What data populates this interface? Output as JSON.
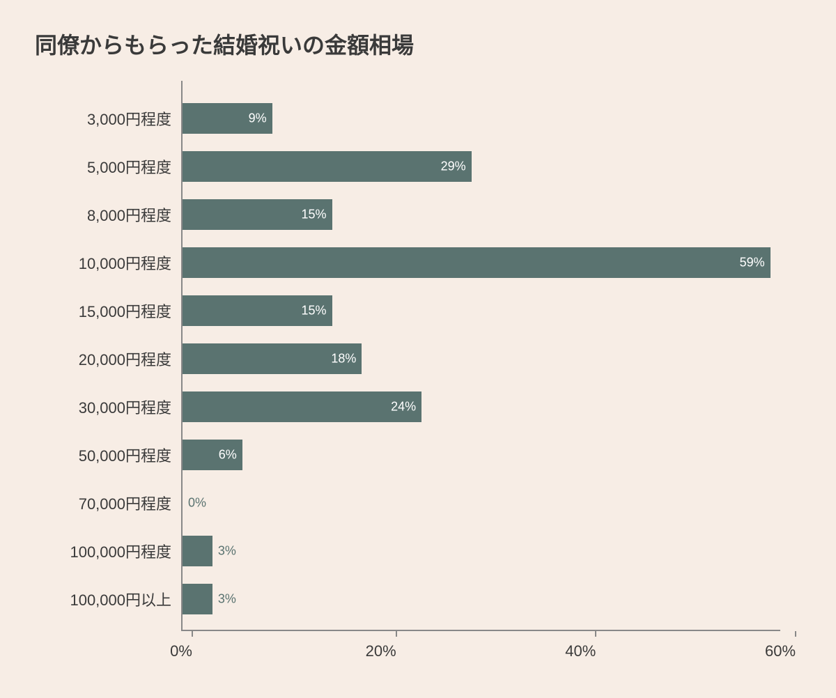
{
  "chart": {
    "type": "horizontal-bar",
    "title": "同僚からもらった結婚祝いの金額相場",
    "title_fontsize": 32,
    "background_color": "#f7ede5",
    "bar_color": "#5a7370",
    "text_color": "#3a3a3a",
    "value_label_inside_color": "#ffffff",
    "value_label_outside_color": "#5a7370",
    "axis_color": "#888888",
    "label_fontsize": 22,
    "value_fontsize": 18,
    "xlim": [
      0,
      60
    ],
    "xtick_step": 20,
    "xticks": [
      {
        "pos": 0,
        "label": "0%"
      },
      {
        "pos": 20,
        "label": "20%"
      },
      {
        "pos": 40,
        "label": "40%"
      },
      {
        "pos": 60,
        "label": "60%"
      }
    ],
    "value_label_inside_threshold": 4,
    "categories": [
      {
        "label": "3,000円程度",
        "value": 9,
        "value_label": "9%"
      },
      {
        "label": "5,000円程度",
        "value": 29,
        "value_label": "29%"
      },
      {
        "label": "8,000円程度",
        "value": 15,
        "value_label": "15%"
      },
      {
        "label": "10,000円程度",
        "value": 59,
        "value_label": "59%"
      },
      {
        "label": "15,000円程度",
        "value": 15,
        "value_label": "15%"
      },
      {
        "label": "20,000円程度",
        "value": 18,
        "value_label": "18%"
      },
      {
        "label": "30,000円程度",
        "value": 24,
        "value_label": "24%"
      },
      {
        "label": "50,000円程度",
        "value": 6,
        "value_label": "6%"
      },
      {
        "label": "70,000円程度",
        "value": 0,
        "value_label": "0%"
      },
      {
        "label": "100,000円程度",
        "value": 3,
        "value_label": "3%"
      },
      {
        "label": "100,000円以上",
        "value": 3,
        "value_label": "3%"
      }
    ]
  }
}
